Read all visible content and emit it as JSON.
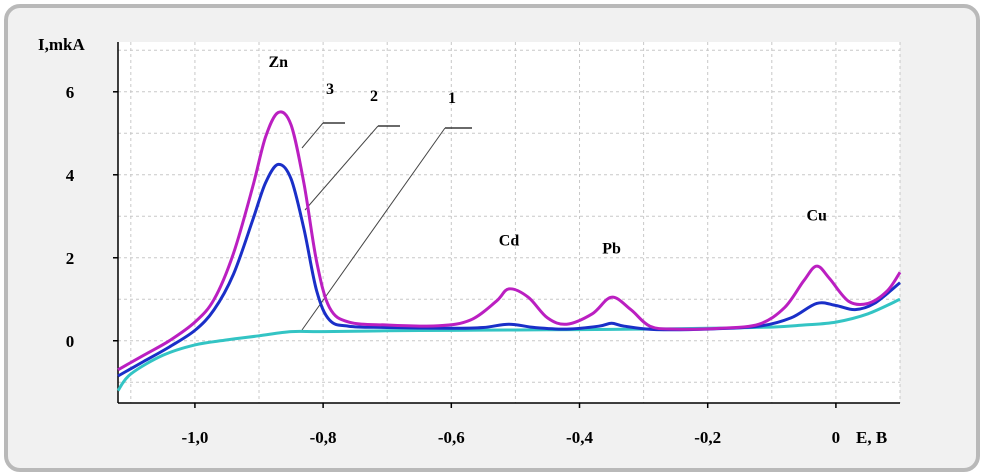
{
  "chart_data": {
    "type": "line",
    "ylabel": "I,mkA",
    "xlabel": "E, B",
    "xlim": [
      -1.12,
      0.1
    ],
    "ylim": [
      -1.5,
      7.2
    ],
    "x_ticks": [
      {
        "value": -1.0,
        "label": "-1,0"
      },
      {
        "value": -0.8,
        "label": "-0,8"
      },
      {
        "value": -0.6,
        "label": "-0,6"
      },
      {
        "value": -0.4,
        "label": "-0,4"
      },
      {
        "value": -0.2,
        "label": "-0,2"
      },
      {
        "value": 0.0,
        "label": "0"
      }
    ],
    "y_ticks": [
      {
        "value": 0,
        "label": "0"
      },
      {
        "value": 2,
        "label": "2"
      },
      {
        "value": 4,
        "label": "4"
      },
      {
        "value": 6,
        "label": "6"
      }
    ],
    "grid": true,
    "series": [
      {
        "label": "1",
        "color": "#33c4c4",
        "points": [
          [
            -1.12,
            -1.2
          ],
          [
            -1.1,
            -0.8
          ],
          [
            -1.05,
            -0.35
          ],
          [
            -1.0,
            -0.1
          ],
          [
            -0.95,
            0.02
          ],
          [
            -0.9,
            0.12
          ],
          [
            -0.85,
            0.22
          ],
          [
            -0.8,
            0.22
          ],
          [
            -0.7,
            0.24
          ],
          [
            -0.6,
            0.25
          ],
          [
            -0.5,
            0.26
          ],
          [
            -0.4,
            0.27
          ],
          [
            -0.3,
            0.28
          ],
          [
            -0.2,
            0.3
          ],
          [
            -0.1,
            0.33
          ],
          [
            -0.05,
            0.38
          ],
          [
            0.0,
            0.45
          ],
          [
            0.05,
            0.65
          ],
          [
            0.1,
            1.0
          ]
        ]
      },
      {
        "label": "2",
        "color": "#1a2fc8",
        "points": [
          [
            -1.12,
            -0.85
          ],
          [
            -1.08,
            -0.5
          ],
          [
            -1.04,
            -0.15
          ],
          [
            -1.0,
            0.25
          ],
          [
            -0.97,
            0.75
          ],
          [
            -0.94,
            1.6
          ],
          [
            -0.91,
            2.9
          ],
          [
            -0.89,
            3.8
          ],
          [
            -0.87,
            4.25
          ],
          [
            -0.85,
            3.9
          ],
          [
            -0.83,
            2.7
          ],
          [
            -0.81,
            1.2
          ],
          [
            -0.79,
            0.5
          ],
          [
            -0.76,
            0.35
          ],
          [
            -0.7,
            0.32
          ],
          [
            -0.6,
            0.3
          ],
          [
            -0.55,
            0.32
          ],
          [
            -0.51,
            0.4
          ],
          [
            -0.47,
            0.32
          ],
          [
            -0.42,
            0.28
          ],
          [
            -0.37,
            0.35
          ],
          [
            -0.35,
            0.42
          ],
          [
            -0.33,
            0.35
          ],
          [
            -0.28,
            0.27
          ],
          [
            -0.2,
            0.28
          ],
          [
            -0.12,
            0.35
          ],
          [
            -0.07,
            0.55
          ],
          [
            -0.03,
            0.9
          ],
          [
            0.0,
            0.85
          ],
          [
            0.03,
            0.75
          ],
          [
            0.06,
            0.9
          ],
          [
            0.1,
            1.4
          ]
        ]
      },
      {
        "label": "3",
        "color": "#bb1fc1",
        "points": [
          [
            -1.12,
            -0.7
          ],
          [
            -1.08,
            -0.35
          ],
          [
            -1.04,
            0.0
          ],
          [
            -1.0,
            0.45
          ],
          [
            -0.97,
            1.0
          ],
          [
            -0.94,
            2.1
          ],
          [
            -0.91,
            3.7
          ],
          [
            -0.89,
            4.9
          ],
          [
            -0.87,
            5.5
          ],
          [
            -0.85,
            5.2
          ],
          [
            -0.83,
            3.8
          ],
          [
            -0.81,
            1.9
          ],
          [
            -0.79,
            0.8
          ],
          [
            -0.76,
            0.45
          ],
          [
            -0.7,
            0.38
          ],
          [
            -0.62,
            0.36
          ],
          [
            -0.57,
            0.5
          ],
          [
            -0.53,
            0.95
          ],
          [
            -0.51,
            1.25
          ],
          [
            -0.48,
            1.05
          ],
          [
            -0.45,
            0.55
          ],
          [
            -0.42,
            0.4
          ],
          [
            -0.38,
            0.65
          ],
          [
            -0.35,
            1.05
          ],
          [
            -0.32,
            0.75
          ],
          [
            -0.29,
            0.35
          ],
          [
            -0.25,
            0.28
          ],
          [
            -0.18,
            0.3
          ],
          [
            -0.12,
            0.4
          ],
          [
            -0.08,
            0.8
          ],
          [
            -0.05,
            1.45
          ],
          [
            -0.03,
            1.8
          ],
          [
            -0.01,
            1.5
          ],
          [
            0.02,
            0.95
          ],
          [
            0.05,
            0.9
          ],
          [
            0.08,
            1.2
          ],
          [
            0.1,
            1.65
          ]
        ]
      }
    ],
    "curve_labels": [
      "1",
      "2",
      "3"
    ],
    "annotations": [
      {
        "text": "Zn",
        "x": -0.87,
        "y": 6.6
      },
      {
        "text": "Cd",
        "x": -0.51,
        "y": 2.3
      },
      {
        "text": "Pb",
        "x": -0.35,
        "y": 2.1
      },
      {
        "text": "Cu",
        "x": -0.03,
        "y": 2.9
      }
    ]
  }
}
